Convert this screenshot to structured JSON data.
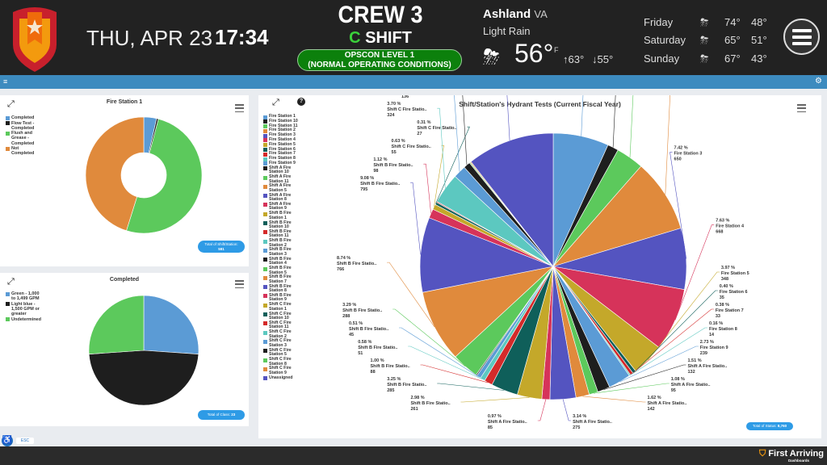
{
  "header": {
    "date": "THU, APR 23",
    "time": "17:34",
    "crew": "CREW 3",
    "shift_letter": "C",
    "shift_word": "SHIFT",
    "opscon_line1": "OPSCON LEVEL 1",
    "opscon_line2": "(NORMAL OPERATING CONDITIONS)"
  },
  "weather": {
    "city": "Ashland",
    "state": "VA",
    "condition": "Light Rain",
    "icon": "rain-sun-icon",
    "temp": "56°",
    "unit": "F",
    "high": "63°",
    "low": "55°",
    "forecast": [
      {
        "day": "Friday",
        "icon": "rain-sun-icon",
        "high": "74°",
        "low": "48°"
      },
      {
        "day": "Saturday",
        "icon": "rain-sun-icon",
        "high": "65°",
        "low": "51°"
      },
      {
        "day": "Sunday",
        "icon": "rain-sun-icon",
        "high": "67°",
        "low": "43°"
      }
    ]
  },
  "colors": {
    "header_bg": "#222222",
    "bar": "#3d8bbf",
    "opscon": "#0c800c",
    "badge": "#2e9be6",
    "palette": [
      "#5b9bd5",
      "#1e1e1e",
      "#5cc95c",
      "#e08a3c",
      "#5454c0",
      "#d6335a",
      "#c4a82a",
      "#0f5f5a",
      "#d42a2a",
      "#5cc8c0"
    ]
  },
  "footer": {
    "brand": "First Arriving",
    "sub": "Dashboards",
    "esc": "ESC"
  },
  "chart_data": [
    {
      "type": "pie",
      "variant": "donut",
      "title": "Fire Station 1",
      "legend": "top-left",
      "categories": [
        "Completed",
        "Flow Test - Completed",
        "Flush and Grease - Completed",
        "Not Completed"
      ],
      "values": [
        21,
        3,
        300,
        267
      ],
      "colors": [
        "#5b9bd5",
        "#1e1e1e",
        "#5cc95c",
        "#e08a3c"
      ],
      "total_label": "Total of Shift/Station:",
      "total": "591"
    },
    {
      "type": "pie",
      "title": "Completed",
      "legend": "top-left",
      "categories": [
        "Green - 1,000 to 1,499 GPM",
        "Light blue - 1,500 GPM or greater",
        "Undetermined"
      ],
      "values": [
        6,
        11,
        6
      ],
      "colors": [
        "#5b9bd5",
        "#1e1e1e",
        "#5cc95c"
      ],
      "total_label": "Total of Class:",
      "total": "23"
    },
    {
      "type": "pie",
      "title": "Shift/Station's Hydrant Tests (Current Fiscal Year)",
      "legend": "left",
      "total_label": "Total of Status:",
      "total": "8,760",
      "slices": [
        {
          "name": "Fire Station 1",
          "label": "Fire Station 1",
          "value": 591,
          "pct": "6.75 %"
        },
        {
          "name": "Fire Station 10",
          "label": "Fire Station 10",
          "value": 117,
          "pct": "1.34 %"
        },
        {
          "name": "Fire Station 11",
          "label": "Fire Station 11",
          "value": 295,
          "pct": "3.37 %"
        },
        {
          "name": "Fire Station 2",
          "label": "Fire Station 2",
          "value": 781,
          "pct": "8.92 %"
        },
        {
          "name": "Fire Station 3",
          "label": "Fire Station 3",
          "value": 650,
          "pct": "7.42 %"
        },
        {
          "name": "Fire Station 4",
          "label": "Fire Station 4",
          "value": 668,
          "pct": "7.63 %"
        },
        {
          "name": "Fire Station 5",
          "label": "Fire Station 5",
          "value": 348,
          "pct": "3.97 %"
        },
        {
          "name": "Fire Station 6",
          "label": "Fire Station 6",
          "value": 35,
          "pct": "0.40 %"
        },
        {
          "name": "Fire Station 7",
          "label": "Fire Station 7",
          "value": 33,
          "pct": "0.38 %"
        },
        {
          "name": "Fire Station 8",
          "label": "Fire Station 8",
          "value": 14,
          "pct": "0.16 %"
        },
        {
          "name": "Fire Station 9",
          "label": "Fire Station 9",
          "value": 239,
          "pct": "2.73 %"
        },
        {
          "name": "Shift A Fire Station 10",
          "label": "Shift A Fire Statio..",
          "value": 132,
          "pct": "1.51 %"
        },
        {
          "name": "Shift A Fire Station 11",
          "label": "Shift A Fire Statio..",
          "value": 95,
          "pct": "1.08 %"
        },
        {
          "name": "Shift A Fire Station 5",
          "label": "Shift A Fire Statio..",
          "value": 142,
          "pct": "1.62 %"
        },
        {
          "name": "Shift A Fire Station 8",
          "label": "Shift A Fire Statio..",
          "value": 275,
          "pct": "3.14 %"
        },
        {
          "name": "Shift A Fire Station 9",
          "label": "Shift A Fire Statio..",
          "value": 85,
          "pct": "0.97 %"
        },
        {
          "name": "Shift B Fire Station 1",
          "label": "Shift B Fire Statio..",
          "value": 261,
          "pct": "2.98 %"
        },
        {
          "name": "Shift B Fire Station 10",
          "label": "Shift B Fire Statio..",
          "value": 285,
          "pct": "3.25 %"
        },
        {
          "name": "Shift B Fire Station 11",
          "label": "Shift B Fire Statio..",
          "value": 88,
          "pct": "1.00 %"
        },
        {
          "name": "Shift B Fire Station 2",
          "label": "Shift B Fire Statio..",
          "value": 51,
          "pct": "0.58 %"
        },
        {
          "name": "Shift B Fire Station 3",
          "label": "Shift B Fire Statio..",
          "value": 45,
          "pct": "0.51 %"
        },
        {
          "name": "Shift B Fire Station 4",
          "value": 12
        },
        {
          "name": "Shift B Fire Station 5",
          "label": "Shift B Fire Statio..",
          "value": 288,
          "pct": "3.29 %"
        },
        {
          "name": "Shift B Fire Station 7",
          "label": "Shift B Fire Statio..",
          "value": 766,
          "pct": "8.74 %"
        },
        {
          "name": "Shift B Fire Station 8",
          "label": "Shift B Fire Statio..",
          "value": 795,
          "pct": "9.08 %"
        },
        {
          "name": "Shift B Fire Station 9",
          "label": "Shift B Fire Statio..",
          "value": 98,
          "pct": "1.12 %"
        },
        {
          "name": "Shift C Fire Station 1",
          "label": "Shift C Fire Statio..",
          "value": 55,
          "pct": "0.63 %"
        },
        {
          "name": "Shift C Fire Station 10",
          "label": "Shift C Fire Statio..",
          "value": 27,
          "pct": "0.31 %"
        },
        {
          "name": "Shift C Fire Station 11",
          "value": 10
        },
        {
          "name": "Shift C Fire Station 2",
          "label": "Shift C Fire Statio..",
          "value": 324,
          "pct": "3.70 %"
        },
        {
          "name": "Shift C Fire Station 3",
          "label": "Shift C Fire Statio..",
          "value": 136,
          "pct": "1.55 %"
        },
        {
          "name": "Shift C Fire Station 5",
          "label": "Shift C Fire Statio..",
          "value": 71,
          "pct": "0.81 %"
        },
        {
          "name": "Shift C Fire Station 8",
          "value": 10
        },
        {
          "name": "Shift C Fire Station 9",
          "value": 10
        },
        {
          "name": "Unassigned",
          "label": "Unassigned",
          "value": 928,
          "pct": "10.59 %"
        }
      ]
    }
  ]
}
